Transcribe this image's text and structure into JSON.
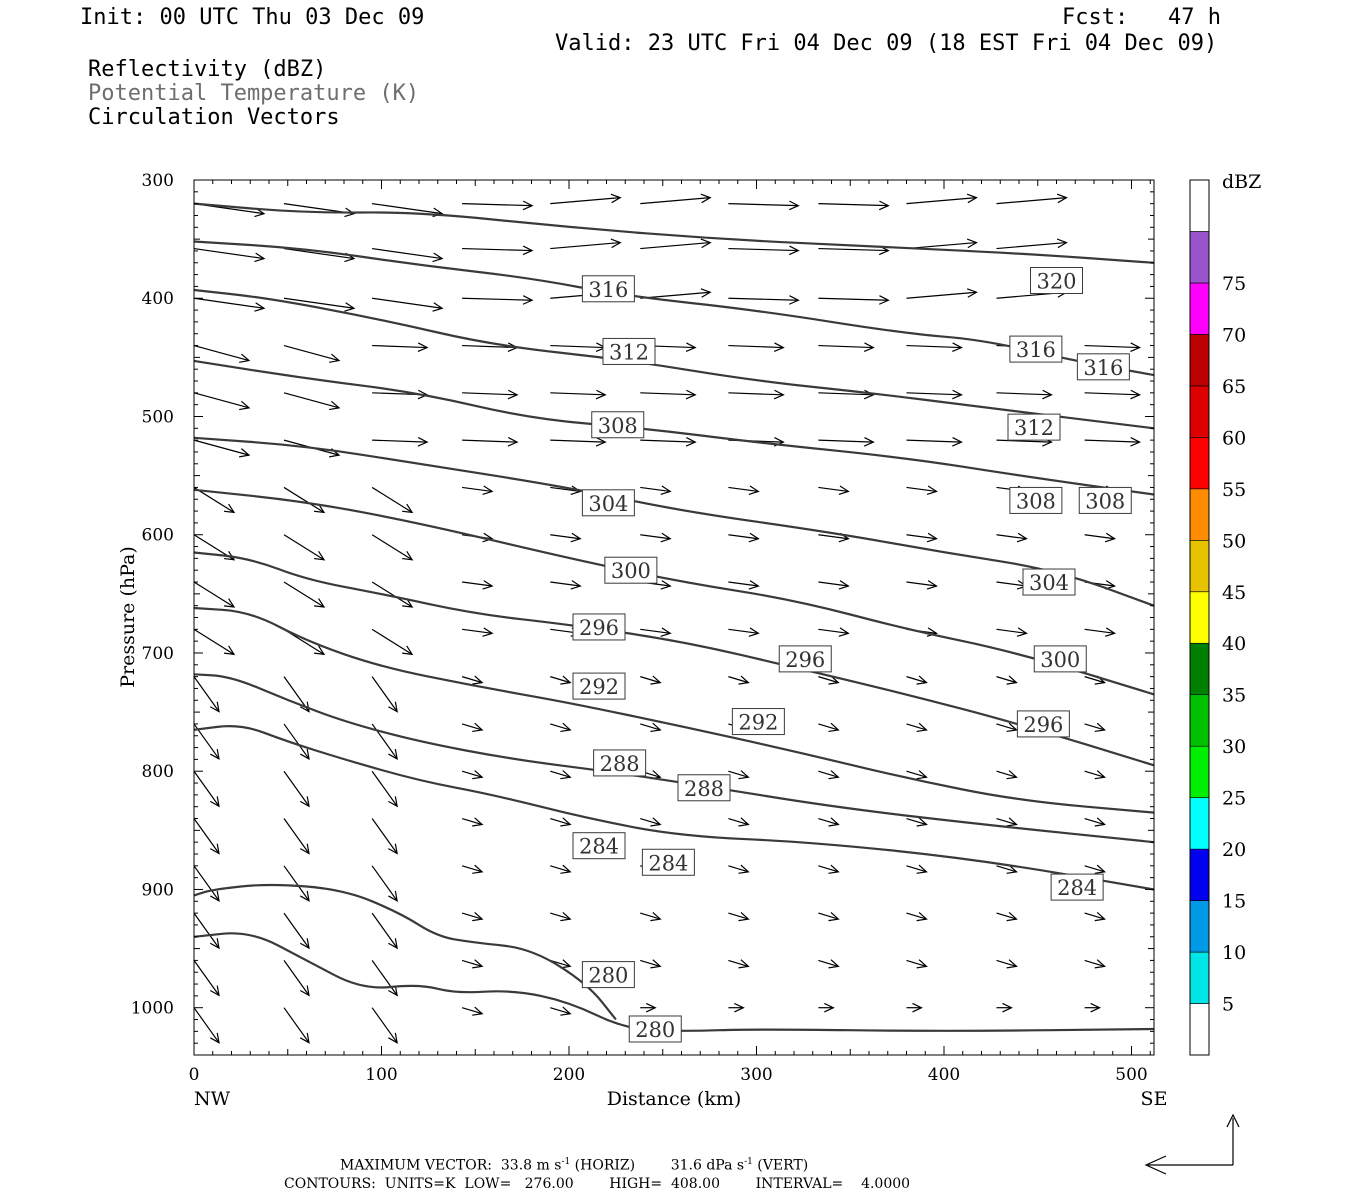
{
  "header": {
    "init": "Init: 00 UTC Thu 03 Dec 09",
    "fcst": "Fcst:   47 h",
    "valid": "Valid: 23 UTC Fri 04 Dec 09 (18 EST Fri 04 Dec 09)",
    "legend_reflectivity": "Reflectivity (dBZ)",
    "legend_theta": "Potential Temperature (K)",
    "legend_vectors": "Circulation Vectors"
  },
  "footer": {
    "max_vector_label": "MAXIMUM VECTOR:",
    "max_horiz": "33.8 m s",
    "horiz_tag": "(HORIZ)",
    "max_vert": "31.6 dPa s",
    "vert_tag": "(VERT)",
    "contours": "CONTOURS:  UNITS=K  LOW=   276.00        HIGH=  408.00        INTERVAL=    4.0000"
  },
  "chart_data": {
    "type": "line",
    "xlabel": "Distance (km)",
    "ylabel": "Pressure (hPa)",
    "xlim": [
      0,
      512
    ],
    "ylim": [
      1040,
      300
    ],
    "x_ticks": [
      0,
      100,
      200,
      300,
      400,
      500
    ],
    "y_ticks": [
      300,
      400,
      500,
      600,
      700,
      800,
      900,
      1000
    ],
    "x_end_labels": {
      "left": "NW",
      "right": "SE"
    },
    "grid": false,
    "colorbar": {
      "title": "dBZ",
      "levels": [
        5,
        10,
        15,
        20,
        25,
        30,
        35,
        40,
        45,
        50,
        55,
        60,
        65,
        70,
        75
      ],
      "colors": [
        "#ffffff",
        "#00e5e5",
        "#0099e6",
        "#0000ee",
        "#00ffff",
        "#00ee00",
        "#00c000",
        "#008000",
        "#ffff00",
        "#e6c200",
        "#ff8c00",
        "#ff0000",
        "#dd0000",
        "#bb0000",
        "#ff00ff",
        "#9955cc",
        "#ffffff"
      ],
      "band_labels": [
        "",
        "5",
        "10",
        "15",
        "20",
        "25",
        "30",
        "35",
        "40",
        "45",
        "50",
        "55",
        "60",
        "65",
        "70",
        "75"
      ]
    },
    "theta_contours": [
      {
        "value": 320,
        "points": [
          [
            0,
            320
          ],
          [
            60,
            328
          ],
          [
            120,
            327
          ],
          [
            200,
            340
          ],
          [
            280,
            350
          ],
          [
            360,
            356
          ],
          [
            440,
            362
          ],
          [
            512,
            370
          ]
        ],
        "labels": [
          [
            460,
            385
          ]
        ]
      },
      {
        "value": 316,
        "points": [
          [
            0,
            352
          ],
          [
            60,
            358
          ],
          [
            120,
            372
          ],
          [
            180,
            383
          ],
          [
            230,
            398
          ],
          [
            300,
            410
          ],
          [
            380,
            430
          ],
          [
            420,
            435
          ],
          [
            470,
            453
          ],
          [
            512,
            465
          ]
        ],
        "labels": [
          [
            221,
            392
          ],
          [
            449,
            443
          ],
          [
            485,
            458
          ]
        ]
      },
      {
        "value": 312,
        "points": [
          [
            0,
            393
          ],
          [
            40,
            400
          ],
          [
            100,
            418
          ],
          [
            160,
            440
          ],
          [
            230,
            452
          ],
          [
            300,
            470
          ],
          [
            360,
            480
          ],
          [
            420,
            492
          ],
          [
            512,
            510
          ]
        ],
        "labels": [
          [
            232,
            445
          ],
          [
            448,
            509
          ]
        ]
      },
      {
        "value": 308,
        "points": [
          [
            0,
            453
          ],
          [
            60,
            468
          ],
          [
            120,
            480
          ],
          [
            180,
            502
          ],
          [
            240,
            510
          ],
          [
            300,
            522
          ],
          [
            380,
            535
          ],
          [
            440,
            550
          ],
          [
            512,
            566
          ]
        ],
        "labels": [
          [
            226,
            507
          ],
          [
            449,
            571
          ],
          [
            486,
            571
          ]
        ]
      },
      {
        "value": 304,
        "points": [
          [
            0,
            518
          ],
          [
            60,
            525
          ],
          [
            120,
            540
          ],
          [
            200,
            560
          ],
          [
            260,
            580
          ],
          [
            340,
            598
          ],
          [
            400,
            615
          ],
          [
            460,
            630
          ],
          [
            512,
            660
          ]
        ],
        "labels": [
          [
            221,
            573
          ],
          [
            456,
            640
          ]
        ]
      },
      {
        "value": 300,
        "points": [
          [
            0,
            562
          ],
          [
            60,
            572
          ],
          [
            120,
            590
          ],
          [
            200,
            620
          ],
          [
            260,
            640
          ],
          [
            320,
            655
          ],
          [
            380,
            680
          ],
          [
            440,
            700
          ],
          [
            512,
            735
          ]
        ],
        "labels": [
          [
            233,
            630
          ],
          [
            462,
            705
          ]
        ]
      },
      {
        "value": 296,
        "points": [
          [
            0,
            615
          ],
          [
            30,
            620
          ],
          [
            60,
            638
          ],
          [
            100,
            650
          ],
          [
            150,
            667
          ],
          [
            200,
            676
          ],
          [
            260,
            690
          ],
          [
            320,
            712
          ],
          [
            380,
            735
          ],
          [
            440,
            760
          ],
          [
            512,
            795
          ]
        ],
        "labels": [
          [
            216,
            678
          ],
          [
            326,
            705
          ],
          [
            453,
            760
          ]
        ]
      },
      {
        "value": 292,
        "points": [
          [
            0,
            662
          ],
          [
            30,
            665
          ],
          [
            60,
            690
          ],
          [
            100,
            712
          ],
          [
            150,
            728
          ],
          [
            200,
            742
          ],
          [
            260,
            762
          ],
          [
            320,
            783
          ],
          [
            380,
            806
          ],
          [
            440,
            825
          ],
          [
            512,
            835
          ]
        ],
        "labels": [
          [
            216,
            728
          ],
          [
            301,
            758
          ]
        ]
      },
      {
        "value": 288,
        "points": [
          [
            0,
            718
          ],
          [
            20,
            720
          ],
          [
            50,
            740
          ],
          [
            80,
            758
          ],
          [
            120,
            775
          ],
          [
            170,
            790
          ],
          [
            220,
            800
          ],
          [
            270,
            812
          ],
          [
            340,
            830
          ],
          [
            420,
            845
          ],
          [
            512,
            860
          ]
        ],
        "labels": [
          [
            227,
            793
          ],
          [
            272,
            814
          ]
        ]
      },
      {
        "value": 284,
        "points": [
          [
            0,
            765
          ],
          [
            25,
            760
          ],
          [
            50,
            775
          ],
          [
            80,
            790
          ],
          [
            120,
            808
          ],
          [
            160,
            820
          ],
          [
            210,
            840
          ],
          [
            260,
            855
          ],
          [
            330,
            860
          ],
          [
            420,
            875
          ],
          [
            512,
            900
          ]
        ],
        "labels": [
          [
            216,
            863
          ],
          [
            253,
            877
          ],
          [
            471,
            898
          ]
        ]
      },
      {
        "value": 280,
        "points": [
          [
            0,
            905
          ],
          [
            10,
            900
          ],
          [
            40,
            895
          ],
          [
            80,
            900
          ],
          [
            110,
            920
          ],
          [
            130,
            940
          ],
          [
            150,
            945
          ],
          [
            180,
            950
          ],
          [
            210,
            980
          ],
          [
            225,
            1010
          ]
        ],
        "labels": [
          [
            221,
            972
          ]
        ]
      },
      {
        "value": 280,
        "points": [
          [
            0,
            940
          ],
          [
            30,
            935
          ],
          [
            60,
            960
          ],
          [
            90,
            985
          ],
          [
            120,
            980
          ],
          [
            140,
            988
          ],
          [
            170,
            985
          ],
          [
            200,
            995
          ],
          [
            230,
            1018
          ],
          [
            260,
            1020
          ],
          [
            300,
            1018
          ],
          [
            400,
            1020
          ],
          [
            512,
            1018
          ]
        ],
        "labels": [
          [
            246,
            1018
          ]
        ]
      }
    ],
    "circulation_vectors": {
      "x": [
        0,
        48,
        95,
        143,
        190,
        238,
        285,
        333,
        380,
        428,
        475
      ],
      "levels": [
        320,
        358,
        400,
        440,
        480,
        520,
        560,
        600,
        640,
        680,
        720,
        760,
        800,
        840,
        880,
        920,
        960,
        1000
      ]
    }
  }
}
